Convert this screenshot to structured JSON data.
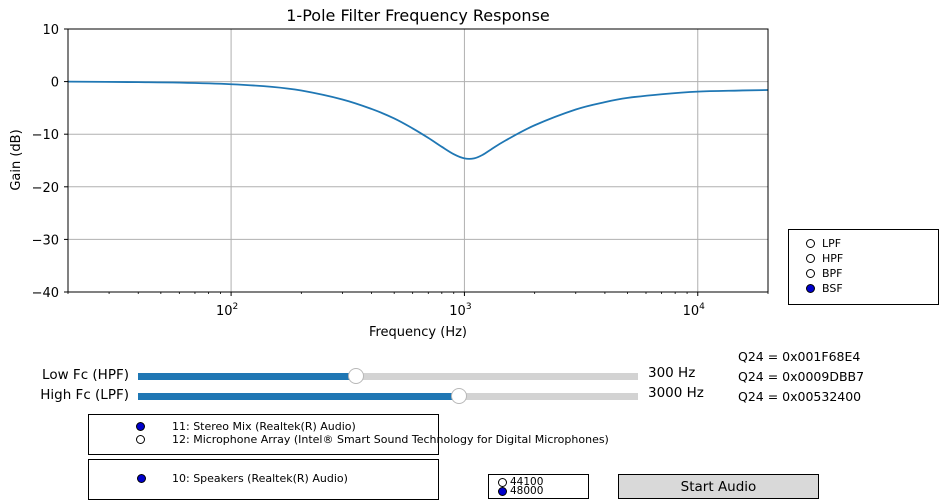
{
  "chart_data": {
    "type": "line",
    "title": "1-Pole Filter Frequency Response",
    "xlabel": "Frequency (Hz)",
    "ylabel": "Gain (dB)",
    "xscale": "log",
    "xlim": [
      20,
      20000
    ],
    "ylim": [
      -40,
      10
    ],
    "grid": true,
    "x_ticks": [
      {
        "value": 100,
        "base": "10",
        "exp": "2"
      },
      {
        "value": 1000,
        "base": "10",
        "exp": "3"
      },
      {
        "value": 10000,
        "base": "10",
        "exp": "4"
      }
    ],
    "y_ticks": [
      {
        "value": 10,
        "label": "10"
      },
      {
        "value": 0,
        "label": "0"
      },
      {
        "value": -10,
        "label": "−10"
      },
      {
        "value": -20,
        "label": "−20"
      },
      {
        "value": -30,
        "label": "−30"
      },
      {
        "value": -40,
        "label": "−40"
      }
    ],
    "series": [
      {
        "color": "#1f77b4",
        "x": [
          20,
          40,
          60,
          100,
          150,
          200,
          300,
          400,
          500,
          600,
          700,
          800,
          900,
          1000,
          1100,
          1200,
          1300,
          1500,
          2000,
          3000,
          4000,
          5000,
          7000,
          10000,
          15000,
          20000
        ],
        "y": [
          0,
          -0.1,
          -0.2,
          -0.5,
          -1.0,
          -1.7,
          -3.4,
          -5.2,
          -7.0,
          -8.9,
          -10.7,
          -12.4,
          -13.8,
          -14.6,
          -14.6,
          -13.9,
          -12.9,
          -11.2,
          -8.3,
          -5.3,
          -3.9,
          -3.1,
          -2.4,
          -1.9,
          -1.7,
          -1.6
        ]
      }
    ]
  },
  "filter_types": [
    {
      "label": "LPF",
      "selected": false
    },
    {
      "label": "HPF",
      "selected": false
    },
    {
      "label": "BPF",
      "selected": false
    },
    {
      "label": "BSF",
      "selected": true
    }
  ],
  "sliders": [
    {
      "label": "Low Fc (HPF)",
      "value_text": "300 Hz",
      "fraction": 0.435
    },
    {
      "label": "High Fc (LPF)",
      "value_text": "3000 Hz",
      "fraction": 0.642
    }
  ],
  "q24": [
    "Q24 = 0x001F68E4",
    "Q24 = 0x0009DBB7",
    "Q24 = 0x00532400"
  ],
  "input_devices": [
    {
      "label": "11: Stereo Mix (Realtek(R) Audio)",
      "selected": true
    },
    {
      "label": "12: Microphone Array (Intel® Smart Sound Technology for Digital Microphones)",
      "selected": false
    }
  ],
  "output_devices": [
    {
      "label": "10: Speakers (Realtek(R) Audio)",
      "selected": true
    }
  ],
  "sample_rates": [
    {
      "label": "44100",
      "selected": false
    },
    {
      "label": "48000",
      "selected": true
    }
  ],
  "start_button": {
    "label": "Start Audio"
  }
}
